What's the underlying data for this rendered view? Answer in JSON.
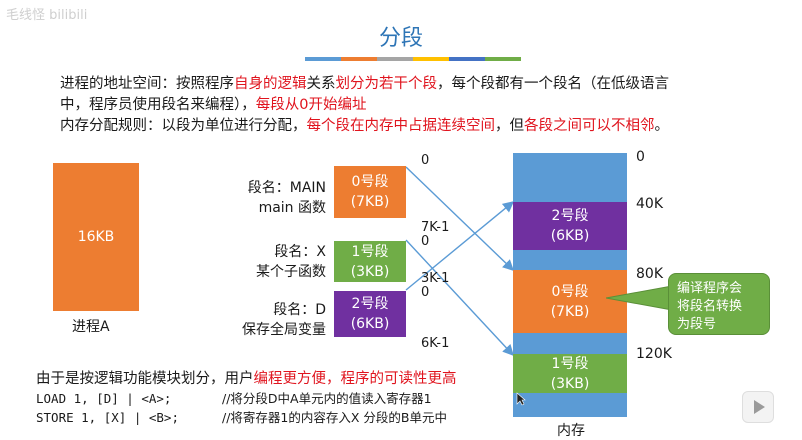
{
  "watermark": "毛线怪 bilibili",
  "title": "分段",
  "accent_colors": [
    "#5b9bd5",
    "#ed7d31",
    "#a5a5a5",
    "#ffc000",
    "#4472c4",
    "#70ad47"
  ],
  "intro": {
    "line1_a": "进程的地址空间：按照程序",
    "line1_b": "自身的逻辑",
    "line1_c": "关系",
    "line1_d": "划分为若干个段",
    "line1_e": "，每个段都有一个段名（在低级语言",
    "line2_a": "中，程序员使用段名来编程），",
    "line2_b": "每段从0开始编址",
    "line3_a": "内存分配规则：以段为单位进行分配，",
    "line3_b": "每个段在内存中占据连续空间",
    "line3_c": "，但",
    "line3_d": "各段之间可以不相邻",
    "line3_e": "。"
  },
  "process": {
    "size": "16KB",
    "label": "进程A"
  },
  "segments": [
    {
      "name_line1": "段名：MAIN",
      "name_line2": "main 函数",
      "title": "0号段",
      "size": "(7KB)",
      "end": "7K-1"
    },
    {
      "name_line1": "段名：X",
      "name_line2": "某个子函数",
      "title": "1号段",
      "size": "(3KB)",
      "end": "3K-1"
    },
    {
      "name_line1": "段名：D",
      "name_line2": "保存全局变量",
      "title": "2号段",
      "size": "(6KB)",
      "end": "6K-1"
    }
  ],
  "seg_start": "0",
  "memory": {
    "label": "内存",
    "marks": {
      "m0": "0",
      "m40": "40K",
      "m80": "80K",
      "m120": "120K"
    },
    "blocks": [
      {
        "title": "2号段",
        "size": "(6KB)"
      },
      {
        "title": "0号段",
        "size": "(7KB)"
      },
      {
        "title": "1号段",
        "size": "(3KB)"
      }
    ]
  },
  "callout": {
    "l1": "编译程序会",
    "l2": "将段名转换",
    "l3": "为段号"
  },
  "bottom": {
    "line1_a": "由于是按逻辑功能模块划分，用户",
    "line1_b": "编程更方便，程序的可读性更高",
    "code1": "LOAD 1, [D] | <A>;",
    "comment1": "//将分段D中A单元内的值读入寄存器1",
    "code2": "STORE 1, [X] | <B>;",
    "comment2": "//将寄存器1的内容存入X 分段的B单元中"
  }
}
